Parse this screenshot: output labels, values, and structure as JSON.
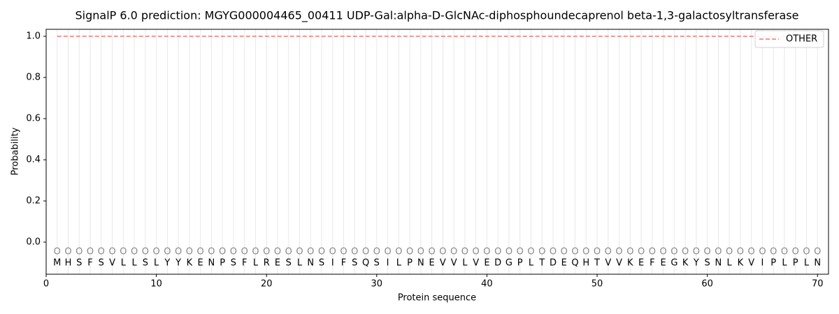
{
  "chart_data": {
    "type": "line",
    "title": "SignalP 6.0 prediction: MGYG000004465_00411 UDP-Gal:alpha-D-GlcNAc-diphosphoundecaprenol beta-1,3-galactosyltransferase",
    "x_label": "Protein sequence",
    "y_label": "Probability",
    "x": [
      1,
      2,
      3,
      4,
      5,
      6,
      7,
      8,
      9,
      10,
      11,
      12,
      13,
      14,
      15,
      16,
      17,
      18,
      19,
      20,
      21,
      22,
      23,
      24,
      25,
      26,
      27,
      28,
      29,
      30,
      31,
      32,
      33,
      34,
      35,
      36,
      37,
      38,
      39,
      40,
      41,
      42,
      43,
      44,
      45,
      46,
      47,
      48,
      49,
      50,
      51,
      52,
      53,
      54,
      55,
      56,
      57,
      58,
      59,
      60,
      61,
      62,
      63,
      64,
      65,
      66,
      67,
      68,
      69,
      70
    ],
    "residues": [
      "M",
      "H",
      "S",
      "F",
      "S",
      "V",
      "L",
      "L",
      "S",
      "L",
      "Y",
      "Y",
      "K",
      "E",
      "N",
      "P",
      "S",
      "F",
      "L",
      "R",
      "E",
      "S",
      "L",
      "N",
      "S",
      "I",
      "F",
      "S",
      "Q",
      "S",
      "I",
      "L",
      "P",
      "N",
      "E",
      "V",
      "V",
      "L",
      "V",
      "E",
      "D",
      "G",
      "P",
      "L",
      "T",
      "D",
      "E",
      "Q",
      "H",
      "T",
      "V",
      "V",
      "K",
      "E",
      "F",
      "E",
      "G",
      "K",
      "Y",
      "S",
      "N",
      "L",
      "K",
      "V",
      "I",
      "P",
      "L",
      "P",
      "L",
      "N"
    ],
    "position_labels": [
      "O",
      "O",
      "O",
      "O",
      "O",
      "O",
      "O",
      "O",
      "O",
      "O",
      "O",
      "O",
      "O",
      "O",
      "O",
      "O",
      "O",
      "O",
      "O",
      "O",
      "O",
      "O",
      "O",
      "O",
      "O",
      "O",
      "O",
      "O",
      "O",
      "O",
      "O",
      "O",
      "O",
      "O",
      "O",
      "O",
      "O",
      "O",
      "O",
      "O",
      "O",
      "O",
      "O",
      "O",
      "O",
      "O",
      "O",
      "O",
      "O",
      "O",
      "O",
      "O",
      "O",
      "O",
      "O",
      "O",
      "O",
      "O",
      "O",
      "O",
      "O",
      "O",
      "O",
      "O",
      "O",
      "O",
      "O",
      "O",
      "O",
      "O"
    ],
    "series": [
      {
        "name": "OTHER",
        "color": "#ee7777",
        "dash": true,
        "values": [
          1,
          1,
          1,
          1,
          1,
          1,
          1,
          1,
          1,
          1,
          1,
          1,
          1,
          1,
          1,
          1,
          1,
          1,
          1,
          1,
          1,
          1,
          1,
          1,
          1,
          1,
          1,
          1,
          1,
          1,
          1,
          1,
          1,
          1,
          1,
          1,
          1,
          1,
          1,
          1,
          1,
          1,
          1,
          1,
          1,
          1,
          1,
          1,
          1,
          1,
          1,
          1,
          1,
          1,
          1,
          1,
          1,
          1,
          1,
          1,
          1,
          1,
          1,
          1,
          1,
          1,
          1,
          1,
          1,
          1
        ]
      }
    ],
    "xlim": [
      0,
      71
    ],
    "ylim": [
      -0.156,
      1.034
    ],
    "xticks": [
      0,
      10,
      20,
      30,
      40,
      50,
      60,
      70
    ],
    "yticks": [
      {
        "value": 0,
        "label": "0.0"
      },
      {
        "value": 0.2,
        "label": "0.2"
      },
      {
        "value": 0.4,
        "label": "0.4"
      },
      {
        "value": 0.6,
        "label": "0.6"
      },
      {
        "value": 0.8,
        "label": "0.8"
      },
      {
        "value": 1,
        "label": "1.0"
      }
    ],
    "legend": "upper right"
  }
}
